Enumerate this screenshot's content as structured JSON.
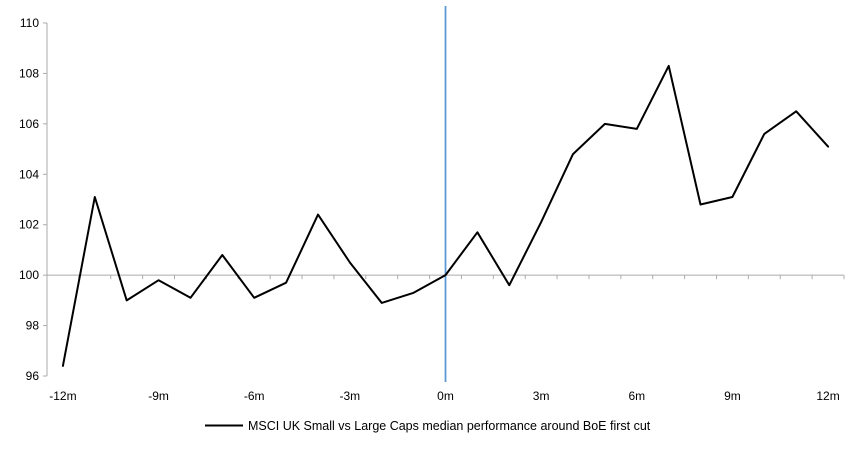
{
  "chart_data": {
    "type": "line",
    "title": "",
    "x": [
      -12,
      -11,
      -10,
      -9,
      -8,
      -7,
      -6,
      -5,
      -4,
      -3,
      -2,
      -1,
      0,
      1,
      2,
      3,
      4,
      5,
      6,
      7,
      8,
      9,
      10,
      11,
      12
    ],
    "series": [
      {
        "name": "MSCI UK Small vs Large Caps median performance around BoE first cut",
        "color": "#000000",
        "values": [
          96.4,
          103.1,
          99.0,
          99.8,
          99.1,
          100.8,
          99.1,
          99.7,
          102.4,
          100.5,
          98.9,
          99.3,
          100.0,
          101.7,
          99.6,
          102.1,
          104.8,
          106.0,
          105.8,
          108.3,
          102.8,
          103.1,
          105.6,
          106.5,
          105.1
        ]
      }
    ],
    "ylim": [
      96,
      110
    ],
    "ytick_labels": [
      "96",
      "98",
      "100",
      "102",
      "104",
      "106",
      "108",
      "110"
    ],
    "yticks": [
      96,
      98,
      100,
      102,
      104,
      106,
      108,
      110
    ],
    "xtick_labels": [
      {
        "pos": -12,
        "label": "-12m"
      },
      {
        "pos": -9,
        "label": "-9m"
      },
      {
        "pos": -6,
        "label": "-6m"
      },
      {
        "pos": -3,
        "label": "-3m"
      },
      {
        "pos": 0,
        "label": "0m"
      },
      {
        "pos": 3,
        "label": "3m"
      },
      {
        "pos": 6,
        "label": "6m"
      },
      {
        "pos": 9,
        "label": "9m"
      },
      {
        "pos": 12,
        "label": "12m"
      }
    ],
    "reference_lines": {
      "vertical_event_line": {
        "pos": 0,
        "color": "#5B9BD5"
      },
      "horizontal_baseline": {
        "value": 100,
        "color": "#ABABAB"
      }
    },
    "axis_color": "#ABABAB",
    "text_color": "#000000",
    "background": "#FFFFFF",
    "grid": "off",
    "legend_position": "bottom-center"
  }
}
